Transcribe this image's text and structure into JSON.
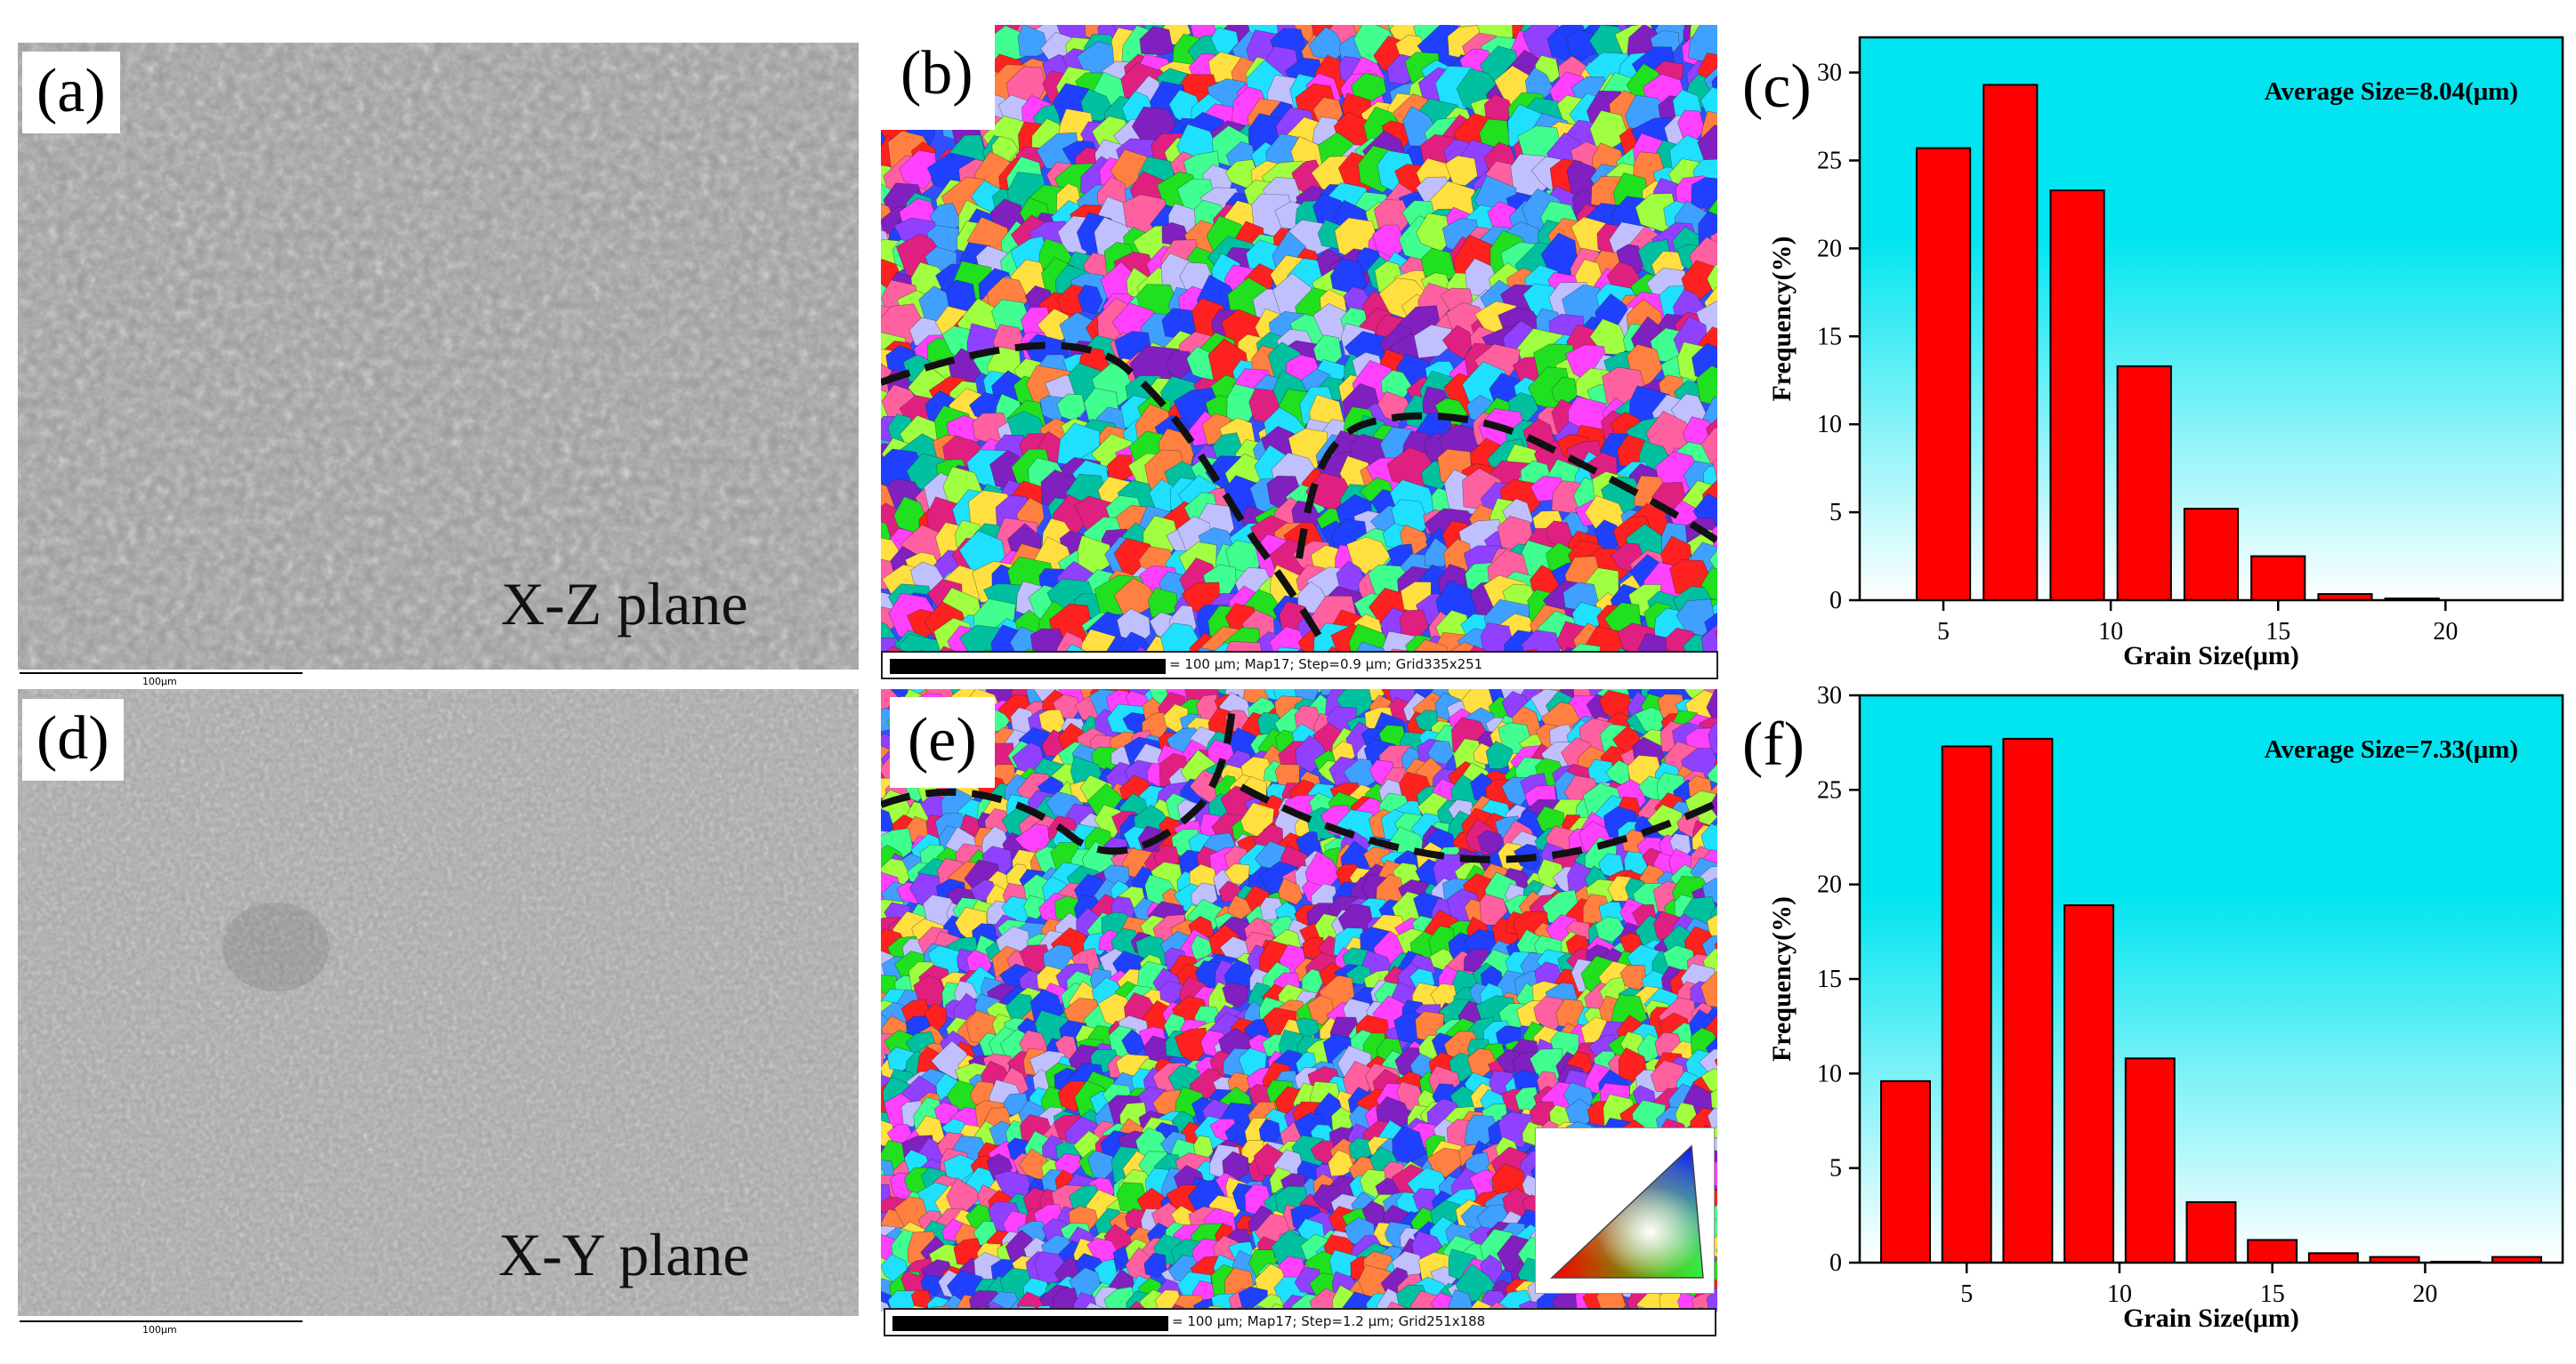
{
  "panels": {
    "a": {
      "label": "(a)",
      "plane": "X-Z plane",
      "scale": "100μm"
    },
    "b": {
      "label": "(b)",
      "scale": "= 100 μm; Map17; Step=0.9 μm; Grid335x251"
    },
    "c": {
      "label": "(c)"
    },
    "d": {
      "label": "(d)",
      "plane": "X-Y plane",
      "scale": "100μm"
    },
    "e": {
      "label": "(e)",
      "scale": "= 100 μm; Map17; Step=1.2 μm; Grid251x188"
    },
    "f": {
      "label": "(f)"
    }
  },
  "colors": {
    "bar": "#ff0000",
    "bg_top": "#00e5f0",
    "bg_bottom": "#ffffff"
  },
  "chart_data": [
    {
      "id": "c",
      "type": "bar",
      "title": "",
      "annotation": "Average Size=8.04(μm)",
      "xlabel": "Grain Size(μm)",
      "ylabel": "Frequency(%)",
      "xlim": [
        2.5,
        23.5
      ],
      "ylim": [
        0,
        32
      ],
      "xticks": [
        5,
        10,
        15,
        20
      ],
      "yticks": [
        0,
        5,
        10,
        15,
        20,
        25,
        30
      ],
      "x": [
        5,
        7,
        9,
        11,
        13,
        15,
        17,
        19
      ],
      "values": [
        25.7,
        29.3,
        23.3,
        13.3,
        5.2,
        2.5,
        0.35,
        0.1
      ],
      "bar_width": 1.6
    },
    {
      "id": "f",
      "type": "bar",
      "title": "",
      "annotation": "Average Size=7.33(μm)",
      "xlabel": "Grain Size(μm)",
      "ylabel": "Frequency(%)",
      "xlim": [
        1.5,
        24.5
      ],
      "ylim": [
        0,
        30
      ],
      "xticks": [
        5,
        10,
        15,
        20
      ],
      "yticks": [
        0,
        5,
        10,
        15,
        20,
        25,
        30
      ],
      "x": [
        3,
        5,
        7,
        9,
        11,
        13,
        15,
        17,
        19,
        21,
        23
      ],
      "values": [
        9.6,
        27.3,
        27.7,
        18.9,
        10.8,
        3.2,
        1.2,
        0.5,
        0.3,
        0.05,
        0.3
      ],
      "bar_width": 1.6
    }
  ]
}
